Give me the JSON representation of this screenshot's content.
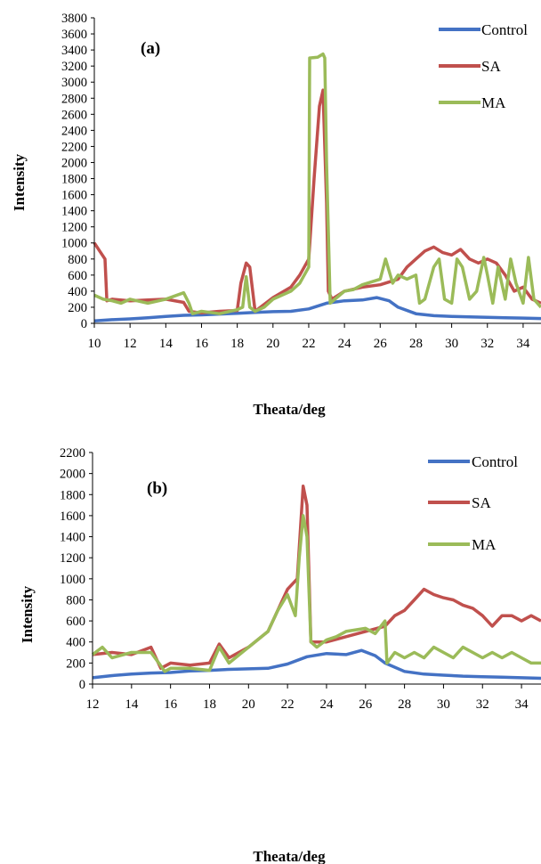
{
  "chart_data": [
    {
      "type": "line",
      "panel_label": "(a)",
      "xlabel": "Theata/deg",
      "ylabel": "Intensity",
      "xlim": [
        10,
        35
      ],
      "ylim": [
        0,
        3800
      ],
      "xticks": [
        10,
        12,
        14,
        16,
        18,
        20,
        22,
        24,
        26,
        28,
        30,
        32,
        34
      ],
      "yticks": [
        0,
        200,
        400,
        600,
        800,
        1000,
        1200,
        1400,
        1600,
        1800,
        2000,
        2200,
        2400,
        2600,
        2800,
        3000,
        3200,
        3400,
        3600,
        3800
      ],
      "x_tick_labels": [
        "10",
        "12",
        "14",
        "16",
        "18",
        "20",
        "22",
        "24",
        "26",
        "28",
        "30",
        "32",
        "34"
      ],
      "y_tick_labels": [
        "0",
        "200",
        "400",
        "600",
        "800",
        "1000",
        "1200",
        "1400",
        "1600",
        "1800",
        "2000",
        "2200",
        "2400",
        "2600",
        "2800",
        "3000",
        "3200",
        "3400",
        "3600",
        "3800"
      ],
      "grid": false,
      "legend_position": "top-right",
      "series": [
        {
          "name": "Control",
          "color": "#4472C4",
          "x": [
            10,
            11,
            12,
            13,
            14,
            15,
            16,
            17,
            18,
            19,
            20,
            21,
            22,
            23,
            24,
            25,
            25.8,
            26.5,
            27,
            28,
            29,
            30,
            31,
            32,
            33,
            34,
            35
          ],
          "y": [
            30,
            45,
            55,
            70,
            85,
            100,
            105,
            115,
            125,
            135,
            145,
            150,
            180,
            250,
            280,
            290,
            320,
            280,
            200,
            120,
            95,
            85,
            80,
            75,
            70,
            65,
            60
          ]
        },
        {
          "name": "SA",
          "color": "#C0504D",
          "x": [
            10,
            10.3,
            10.6,
            10.7,
            11,
            12,
            13,
            14,
            15,
            15.3,
            16,
            17,
            18,
            18.2,
            18.5,
            18.7,
            19,
            20,
            21,
            21.5,
            22,
            22.3,
            22.6,
            22.8,
            23,
            23.1,
            23.3,
            24,
            25,
            26,
            27,
            27.5,
            28,
            28.5,
            29,
            29.5,
            30,
            30.5,
            31,
            31.5,
            32,
            32.5,
            33,
            33.5,
            34,
            34.5,
            35
          ],
          "y": [
            1000,
            900,
            800,
            280,
            300,
            280,
            290,
            300,
            260,
            150,
            130,
            150,
            160,
            500,
            750,
            700,
            150,
            320,
            450,
            600,
            800,
            1800,
            2700,
            2900,
            1500,
            400,
            300,
            400,
            450,
            480,
            550,
            700,
            800,
            900,
            950,
            880,
            850,
            920,
            800,
            750,
            800,
            750,
            600,
            400,
            450,
            300,
            250
          ]
        },
        {
          "name": "MA",
          "color": "#9BBB59",
          "x": [
            10,
            10.5,
            11,
            11.5,
            12,
            13,
            14,
            15,
            15.3,
            15.5,
            16,
            17,
            18,
            18.3,
            18.5,
            18.7,
            19,
            19.5,
            20,
            21,
            21.5,
            22,
            22.05,
            22.5,
            22.8,
            22.9,
            23,
            23.2,
            24,
            24.5,
            25,
            26,
            26.3,
            26.7,
            27,
            27.5,
            28,
            28.2,
            28.5,
            29,
            29.3,
            29.6,
            30,
            30.3,
            30.6,
            31,
            31.4,
            31.8,
            32,
            32.3,
            32.6,
            33,
            33.3,
            33.6,
            34,
            34.3,
            34.6,
            35
          ],
          "y": [
            350,
            300,
            280,
            250,
            300,
            250,
            300,
            380,
            250,
            120,
            150,
            120,
            170,
            200,
            580,
            200,
            150,
            200,
            300,
            400,
            500,
            700,
            3300,
            3310,
            3350,
            3300,
            2000,
            250,
            400,
            420,
            480,
            550,
            800,
            500,
            600,
            550,
            600,
            250,
            300,
            700,
            800,
            300,
            250,
            800,
            700,
            300,
            400,
            820,
            600,
            250,
            700,
            300,
            800,
            500,
            250,
            820,
            300,
            200
          ]
        }
      ]
    },
    {
      "type": "line",
      "panel_label": "(b)",
      "xlabel": "Theata/deg",
      "ylabel": "Intensity",
      "xlim": [
        12,
        35
      ],
      "ylim": [
        0,
        2200
      ],
      "xticks": [
        12,
        14,
        16,
        18,
        20,
        22,
        24,
        26,
        28,
        30,
        32,
        34
      ],
      "yticks": [
        0,
        200,
        400,
        600,
        800,
        1000,
        1200,
        1400,
        1600,
        1800,
        2000,
        2200
      ],
      "x_tick_labels": [
        "12",
        "14",
        "16",
        "18",
        "20",
        "22",
        "24",
        "26",
        "28",
        "30",
        "32",
        "34"
      ],
      "y_tick_labels": [
        "0",
        "200",
        "400",
        "600",
        "800",
        "1000",
        "1200",
        "1400",
        "1600",
        "1800",
        "2000",
        "2200"
      ],
      "grid": false,
      "legend_position": "top-right",
      "series": [
        {
          "name": "Control",
          "color": "#4472C4",
          "x": [
            12,
            13,
            14,
            15,
            16,
            17,
            18,
            19,
            20,
            21,
            22,
            23,
            24,
            25,
            25.8,
            26.5,
            27,
            28,
            29,
            30,
            31,
            32,
            33,
            34,
            35
          ],
          "y": [
            60,
            80,
            95,
            105,
            110,
            125,
            130,
            140,
            145,
            150,
            190,
            260,
            290,
            280,
            320,
            270,
            200,
            120,
            95,
            85,
            75,
            70,
            65,
            60,
            55
          ]
        },
        {
          "name": "SA",
          "color": "#C0504D",
          "x": [
            12,
            13,
            14,
            15,
            15.5,
            16,
            17,
            18,
            18.5,
            19,
            20,
            21,
            22,
            22.5,
            22.8,
            23,
            23.2,
            24,
            25,
            26,
            27,
            27.5,
            28,
            28.5,
            29,
            29.5,
            30,
            30.5,
            31,
            31.5,
            32,
            32.5,
            33,
            33.5,
            34,
            34.5,
            35
          ],
          "y": [
            280,
            300,
            280,
            350,
            150,
            200,
            180,
            200,
            380,
            250,
            350,
            500,
            900,
            1000,
            1880,
            1700,
            400,
            400,
            450,
            500,
            550,
            650,
            700,
            800,
            900,
            850,
            820,
            800,
            750,
            720,
            650,
            550,
            650,
            650,
            600,
            650,
            600
          ]
        },
        {
          "name": "MA",
          "color": "#9BBB59",
          "x": [
            12,
            12.5,
            13,
            14,
            15,
            15.4,
            15.7,
            16,
            17,
            18,
            18.5,
            19,
            20,
            21,
            21.5,
            22,
            22.4,
            22.6,
            22.8,
            23,
            23.2,
            23.5,
            24,
            24.5,
            25,
            26,
            26.5,
            27,
            27.1,
            27.5,
            28,
            28.5,
            29,
            29.5,
            30,
            30.5,
            31,
            31.5,
            32,
            32.5,
            33,
            33.5,
            34,
            34.5,
            35
          ],
          "y": [
            280,
            350,
            250,
            300,
            300,
            200,
            120,
            150,
            150,
            130,
            350,
            200,
            350,
            500,
            700,
            850,
            650,
            1200,
            1600,
            1400,
            400,
            350,
            420,
            450,
            500,
            530,
            480,
            600,
            200,
            300,
            250,
            300,
            250,
            350,
            300,
            250,
            350,
            300,
            250,
            300,
            250,
            300,
            250,
            200,
            200
          ]
        }
      ]
    }
  ]
}
